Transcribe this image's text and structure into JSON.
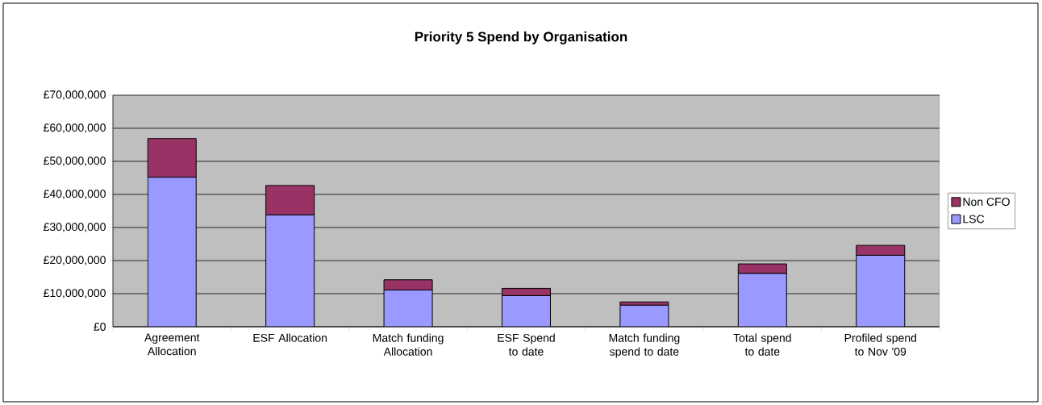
{
  "chart_data": {
    "type": "bar",
    "title": "Priority 5 Spend by Organisation",
    "stacked": true,
    "categories": [
      "Agreement Allocation",
      "ESF Allocation",
      "Match funding Allocation",
      "ESF Spend to date",
      "Match funding spend to date",
      "Total spend to date",
      "Profiled spend to Nov '09"
    ],
    "series": [
      {
        "name": "LSC",
        "color": "#9999ff",
        "values": [
          45200000,
          33800000,
          11100000,
          9400000,
          6500000,
          16100000,
          21600000
        ]
      },
      {
        "name": "Non CFO",
        "color": "#993366",
        "values": [
          11700000,
          8900000,
          3100000,
          2200000,
          1000000,
          2900000,
          3000000
        ]
      }
    ],
    "ylim": [
      0,
      70000000
    ],
    "yticks": [
      {
        "value": 0,
        "label": "£0"
      },
      {
        "value": 10000000,
        "label": "£10,000,000"
      },
      {
        "value": 20000000,
        "label": "£20,000,000"
      },
      {
        "value": 30000000,
        "label": "£30,000,000"
      },
      {
        "value": 40000000,
        "label": "£40,000,000"
      },
      {
        "value": 50000000,
        "label": "£50,000,000"
      },
      {
        "value": 60000000,
        "label": "£60,000,000"
      },
      {
        "value": 70000000,
        "label": "£70,000,000"
      }
    ],
    "grid": "y",
    "legend": "right"
  }
}
